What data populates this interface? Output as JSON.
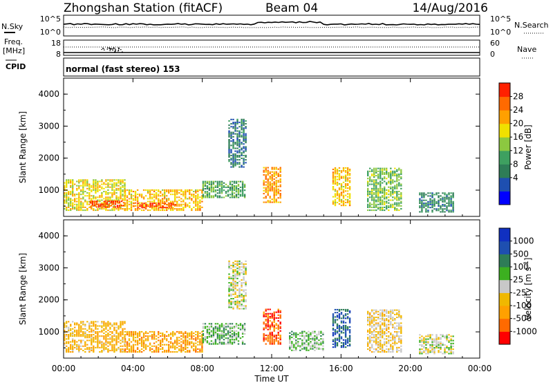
{
  "header": {
    "title": "Zhongshan Station (fitACF)",
    "beam": "Beam 04",
    "date": "14/Aug/2016"
  },
  "left_labels": {
    "nsky": "N.Sky",
    "freq_line1": "Freq.",
    "freq_line2": "[MHz]",
    "cpid": "CPID"
  },
  "right_labels": {
    "nsearch": "N.Search",
    "nave": "Nave"
  },
  "noise_panel": {
    "left_ticks": [
      "10^5",
      "10^0"
    ],
    "right_ticks": [
      "10^5",
      "10^0"
    ]
  },
  "freq_panel": {
    "left_ticks": [
      "18",
      "8"
    ],
    "right_ticks": [
      "60",
      "0"
    ]
  },
  "cpid_text": "normal (fast stereo) 153",
  "axes": {
    "ylabel": "Slant Range [km]",
    "xlabel": "Time UT",
    "y_ticks": [
      "4000",
      "3000",
      "2000",
      "1000"
    ],
    "x_ticks": [
      "00:00",
      "04:00",
      "08:00",
      "12:00",
      "16:00",
      "20:00",
      "00:00"
    ]
  },
  "colors": {
    "power": [
      "#0000ff",
      "#1e4fb0",
      "#2e7d57",
      "#3ea060",
      "#8cc840",
      "#f0e000",
      "#ffa000",
      "#ff6a00",
      "#ff2000"
    ],
    "velocity": [
      "#ff0000",
      "#ff6a00",
      "#ffa000",
      "#f0b800",
      "#c8c8c8",
      "#3cb020",
      "#2e7d57",
      "#1e4fb0",
      "#1030c0"
    ]
  },
  "chart_data": [
    {
      "type": "heatmap",
      "title": "",
      "xlabel": "",
      "ylabel": "Slant Range [km]",
      "x_range": [
        "00:00",
        "00:00"
      ],
      "ylim": [
        180,
        4500
      ],
      "colorbar": {
        "label": "Power [dB]",
        "ticks": [
          "28",
          "24",
          "20",
          "16",
          "12",
          "8",
          "4"
        ],
        "range": [
          0,
          30
        ]
      },
      "regions": [
        {
          "t0": 0.0,
          "t1": 3.5,
          "r0": 350,
          "r1": 1300,
          "value": 18
        },
        {
          "t0": 1.5,
          "t1": 3.5,
          "r0": 450,
          "r1": 650,
          "value": 27
        },
        {
          "t0": 3.5,
          "t1": 8.0,
          "r0": 350,
          "r1": 1000,
          "value": 20
        },
        {
          "t0": 4.0,
          "t1": 6.5,
          "r0": 430,
          "r1": 600,
          "value": 28
        },
        {
          "t0": 8.0,
          "t1": 10.5,
          "r0": 750,
          "r1": 1250,
          "value": 12
        },
        {
          "t0": 9.5,
          "t1": 10.5,
          "r0": 1700,
          "r1": 3200,
          "value": 8
        },
        {
          "t0": 11.5,
          "t1": 12.5,
          "r0": 600,
          "r1": 1700,
          "value": 22
        },
        {
          "t0": 15.5,
          "t1": 16.5,
          "r0": 500,
          "r1": 1700,
          "value": 20
        },
        {
          "t0": 17.5,
          "t1": 19.5,
          "r0": 350,
          "r1": 1700,
          "value": 14
        },
        {
          "t0": 20.5,
          "t1": 22.5,
          "r0": 300,
          "r1": 900,
          "value": 9
        }
      ]
    },
    {
      "type": "heatmap",
      "title": "",
      "xlabel": "Time UT",
      "ylabel": "Slant Range [km]",
      "x_range": [
        "00:00",
        "00:00"
      ],
      "ylim": [
        180,
        4500
      ],
      "colorbar": {
        "label": "Velocity [m s^-1]",
        "ticks": [
          "1000",
          "500",
          "100",
          "25",
          "-25",
          "-100",
          "-500",
          "-1000"
        ],
        "range": [
          -1000,
          1000
        ]
      },
      "regions": [
        {
          "t0": 0.0,
          "t1": 3.5,
          "r0": 350,
          "r1": 1300,
          "value": -300
        },
        {
          "t0": 3.5,
          "t1": 8.0,
          "r0": 350,
          "r1": 1000,
          "value": -400
        },
        {
          "t0": 8.0,
          "t1": 10.5,
          "r0": 600,
          "r1": 1250,
          "value": 200
        },
        {
          "t0": 9.5,
          "t1": 10.5,
          "r0": 1700,
          "r1": 3200,
          "value": 0
        },
        {
          "t0": 11.5,
          "t1": 12.5,
          "r0": 600,
          "r1": 1700,
          "value": -700
        },
        {
          "t0": 13.0,
          "t1": 15.0,
          "r0": 400,
          "r1": 1000,
          "value": 150
        },
        {
          "t0": 15.5,
          "t1": 16.5,
          "r0": 500,
          "r1": 1700,
          "value": 600
        },
        {
          "t0": 17.5,
          "t1": 19.5,
          "r0": 350,
          "r1": 1700,
          "value": -150
        },
        {
          "t0": 20.5,
          "t1": 22.5,
          "r0": 300,
          "r1": 900,
          "value": 0
        }
      ]
    }
  ]
}
